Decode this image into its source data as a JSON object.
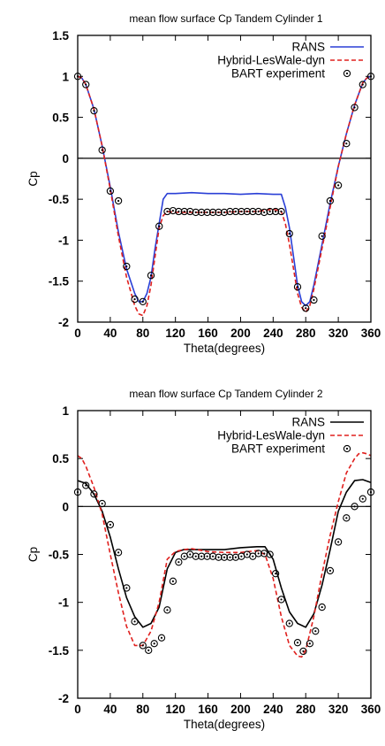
{
  "chart_data": [
    {
      "type": "line",
      "title": "mean flow surface Cp Tandem Cylinder 1",
      "xlabel": "Theta(degrees)",
      "ylabel": "Cp",
      "xlim": [
        0,
        360
      ],
      "ylim": [
        -2,
        1.5
      ],
      "xticks": [
        0,
        40,
        80,
        120,
        160,
        200,
        240,
        280,
        320,
        360
      ],
      "yticks": [
        1.5,
        1,
        0.5,
        0,
        -0.5,
        -1,
        -1.5,
        -2
      ],
      "zero_line": true,
      "legend_position": "top-right",
      "series": [
        {
          "name": "RANS",
          "style": "line",
          "color": "#2a3fd6",
          "x": [
            0,
            5,
            10,
            20,
            30,
            40,
            50,
            60,
            70,
            75,
            80,
            85,
            90,
            95,
            100,
            105,
            110,
            120,
            140,
            160,
            180,
            200,
            220,
            240,
            250,
            255,
            260,
            265,
            270,
            275,
            280,
            285,
            290,
            300,
            310,
            320,
            330,
            340,
            350,
            355,
            360
          ],
          "y": [
            1.0,
            0.98,
            0.9,
            0.6,
            0.15,
            -0.35,
            -0.9,
            -1.35,
            -1.65,
            -1.75,
            -1.75,
            -1.65,
            -1.45,
            -1.1,
            -0.8,
            -0.5,
            -0.43,
            -0.43,
            -0.42,
            -0.43,
            -0.43,
            -0.44,
            -0.43,
            -0.44,
            -0.44,
            -0.6,
            -0.85,
            -1.2,
            -1.55,
            -1.75,
            -1.8,
            -1.75,
            -1.55,
            -1.05,
            -0.55,
            -0.1,
            0.3,
            0.65,
            0.92,
            0.98,
            1.0
          ]
        },
        {
          "name": "Hybrid-LesWale-dyn",
          "style": "dashed",
          "color": "#e0201e",
          "x": [
            0,
            5,
            10,
            20,
            30,
            40,
            50,
            60,
            70,
            75,
            80,
            85,
            90,
            95,
            100,
            105,
            110,
            120,
            140,
            160,
            180,
            200,
            220,
            240,
            250,
            255,
            260,
            265,
            270,
            275,
            280,
            285,
            290,
            300,
            310,
            320,
            330,
            340,
            350,
            355,
            360
          ],
          "y": [
            1.0,
            0.98,
            0.9,
            0.6,
            0.15,
            -0.38,
            -0.95,
            -1.45,
            -1.8,
            -1.9,
            -1.92,
            -1.8,
            -1.55,
            -1.2,
            -0.85,
            -0.7,
            -0.65,
            -0.66,
            -0.66,
            -0.66,
            -0.66,
            -0.65,
            -0.65,
            -0.62,
            -0.65,
            -0.8,
            -1.05,
            -1.35,
            -1.65,
            -1.82,
            -1.88,
            -1.8,
            -1.6,
            -1.1,
            -0.6,
            -0.1,
            0.3,
            0.65,
            0.92,
            0.98,
            1.0
          ]
        },
        {
          "name": "BART experiment",
          "style": "markers",
          "x": [
            0,
            10,
            20,
            30,
            40,
            50,
            60,
            70,
            80,
            90,
            100,
            110,
            117,
            124,
            131,
            138,
            145,
            152,
            159,
            166,
            173,
            180,
            187,
            194,
            201,
            208,
            215,
            222,
            229,
            236,
            243,
            250,
            260,
            270,
            280,
            290,
            300,
            310,
            320,
            330,
            340,
            350,
            360
          ],
          "y": [
            1.0,
            0.9,
            0.58,
            0.1,
            -0.4,
            -0.52,
            -1.32,
            -1.72,
            -1.75,
            -1.43,
            -0.83,
            -0.65,
            -0.64,
            -0.65,
            -0.65,
            -0.65,
            -0.66,
            -0.66,
            -0.66,
            -0.66,
            -0.66,
            -0.66,
            -0.65,
            -0.65,
            -0.65,
            -0.65,
            -0.65,
            -0.65,
            -0.66,
            -0.65,
            -0.65,
            -0.65,
            -0.92,
            -1.57,
            -1.83,
            -1.73,
            -0.95,
            -0.52,
            -0.33,
            0.18,
            0.62,
            0.9,
            1.0
          ]
        }
      ]
    },
    {
      "type": "line",
      "title": "mean flow surface Cp Tandem Cylinder 2",
      "xlabel": "Theta(degrees)",
      "ylabel": "Cp",
      "xlim": [
        0,
        360
      ],
      "ylim": [
        -2,
        1
      ],
      "xticks": [
        0,
        40,
        80,
        120,
        160,
        200,
        240,
        280,
        320,
        360
      ],
      "yticks": [
        1,
        0.5,
        0,
        -0.5,
        -1,
        -1.5,
        -2
      ],
      "zero_line": true,
      "legend_position": "top-right",
      "series": [
        {
          "name": "RANS",
          "style": "line",
          "color": "#000000",
          "x": [
            0,
            10,
            20,
            30,
            40,
            50,
            60,
            70,
            80,
            90,
            100,
            110,
            120,
            130,
            140,
            160,
            180,
            200,
            220,
            230,
            240,
            250,
            260,
            270,
            280,
            290,
            300,
            310,
            320,
            330,
            340,
            350,
            360
          ],
          "y": [
            0.27,
            0.24,
            0.13,
            -0.05,
            -0.32,
            -0.65,
            -0.95,
            -1.15,
            -1.26,
            -1.22,
            -1.05,
            -0.65,
            -0.48,
            -0.45,
            -0.45,
            -0.45,
            -0.45,
            -0.43,
            -0.42,
            -0.42,
            -0.55,
            -0.85,
            -1.1,
            -1.22,
            -1.26,
            -1.12,
            -0.82,
            -0.45,
            -0.05,
            0.15,
            0.27,
            0.28,
            0.25
          ]
        },
        {
          "name": "Hybrid-LesWale-dyn",
          "style": "dashed",
          "color": "#e0201e",
          "x": [
            0,
            5,
            10,
            20,
            30,
            40,
            50,
            60,
            70,
            80,
            90,
            100,
            110,
            120,
            130,
            140,
            160,
            180,
            200,
            220,
            230,
            240,
            250,
            260,
            270,
            275,
            280,
            290,
            300,
            310,
            320,
            330,
            340,
            345,
            350,
            355,
            360
          ],
          "y": [
            0.53,
            0.5,
            0.42,
            0.2,
            -0.08,
            -0.5,
            -0.9,
            -1.25,
            -1.45,
            -1.45,
            -1.3,
            -1.0,
            -0.55,
            -0.47,
            -0.45,
            -0.44,
            -0.47,
            -0.48,
            -0.48,
            -0.46,
            -0.5,
            -0.75,
            -1.15,
            -1.45,
            -1.56,
            -1.57,
            -1.5,
            -1.15,
            -0.7,
            -0.3,
            0.05,
            0.35,
            0.5,
            0.55,
            0.56,
            0.55,
            0.53
          ]
        },
        {
          "name": "BART experiment",
          "style": "markers",
          "x": [
            0,
            10,
            20,
            30,
            40,
            50,
            60,
            70,
            80,
            87,
            94,
            103,
            110,
            117,
            124,
            131,
            138,
            145,
            152,
            159,
            166,
            173,
            180,
            187,
            194,
            201,
            208,
            215,
            222,
            229,
            236,
            243,
            250,
            260,
            270,
            277,
            285,
            292,
            300,
            310,
            320,
            330,
            340,
            350,
            360
          ],
          "y": [
            0.15,
            0.22,
            0.13,
            0.03,
            -0.19,
            -0.48,
            -0.85,
            -1.2,
            -1.45,
            -1.5,
            -1.43,
            -1.37,
            -1.08,
            -0.78,
            -0.58,
            -0.52,
            -0.5,
            -0.52,
            -0.52,
            -0.52,
            -0.52,
            -0.53,
            -0.53,
            -0.53,
            -0.53,
            -0.52,
            -0.5,
            -0.52,
            -0.49,
            -0.49,
            -0.5,
            -0.7,
            -0.97,
            -1.22,
            -1.42,
            -1.51,
            -1.43,
            -1.3,
            -1.05,
            -0.67,
            -0.37,
            -0.12,
            0.0,
            0.08,
            0.15
          ]
        }
      ]
    }
  ]
}
